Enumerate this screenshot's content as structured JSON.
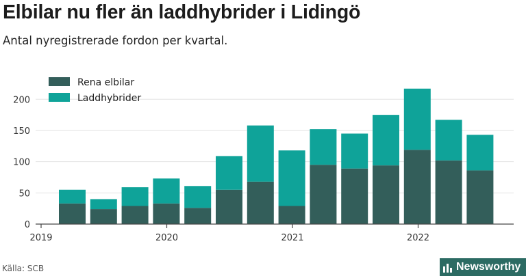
{
  "header": {
    "title": "Elbilar nu fler än laddhybrider i Lidingö",
    "subtitle": "Antal nyregistrerade fordon per kvartal."
  },
  "footer": {
    "source": "Källa: SCB",
    "brand": "Newsworthy"
  },
  "colors": {
    "elbilar": "#335e5a",
    "laddhybrider": "#0fa399",
    "grid": "#e2e2e2",
    "axis": "#444444",
    "brand_bg": "#2c6b63"
  },
  "chart_data": {
    "type": "bar",
    "stacked": true,
    "categories": [
      "2019 Q2",
      "2019 Q3",
      "2019 Q4",
      "2020 Q1",
      "2020 Q2",
      "2020 Q3",
      "2020 Q4",
      "2021 Q1",
      "2021 Q2",
      "2021 Q3",
      "2021 Q4",
      "2022 Q1",
      "2022 Q2",
      "2022 Q3"
    ],
    "series": [
      {
        "name": "Rena elbilar",
        "values": [
          33,
          24,
          29,
          33,
          26,
          55,
          68,
          29,
          95,
          89,
          94,
          119,
          102,
          86
        ]
      },
      {
        "name": "Laddhybrider",
        "values": [
          22,
          16,
          30,
          40,
          35,
          54,
          90,
          89,
          57,
          56,
          81,
          98,
          65,
          57
        ]
      }
    ],
    "xticks": [
      "2019",
      "2020",
      "2021",
      "2022"
    ],
    "yticks": [
      0,
      50,
      100,
      150,
      200
    ],
    "ylim": [
      0,
      220
    ],
    "grid": true,
    "legend": "top-left"
  }
}
